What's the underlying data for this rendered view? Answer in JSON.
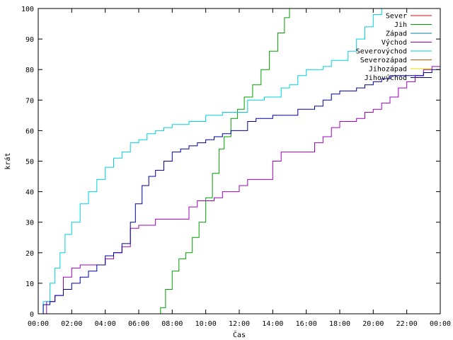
{
  "chart_data": {
    "type": "line",
    "xlabel": "Čas",
    "ylabel": "krát",
    "x_ticks": [
      "00:00",
      "02:00",
      "04:00",
      "06:00",
      "08:00",
      "10:00",
      "12:00",
      "14:00",
      "16:00",
      "18:00",
      "20:00",
      "22:00",
      "00:00"
    ],
    "x_range_hours": [
      0,
      24
    ],
    "ylim": [
      0,
      100
    ],
    "y_ticks": [
      0,
      10,
      20,
      30,
      40,
      50,
      60,
      70,
      80,
      90,
      100
    ],
    "grid": false,
    "legend_position": "top-right",
    "series": [
      {
        "name": "Sever",
        "color": "#ff0000",
        "points": []
      },
      {
        "name": "Jih",
        "color": "#00a000",
        "points": [
          [
            7.0,
            0
          ],
          [
            7.3,
            2
          ],
          [
            7.6,
            8
          ],
          [
            8.0,
            14
          ],
          [
            8.4,
            18
          ],
          [
            8.8,
            20
          ],
          [
            9.2,
            25
          ],
          [
            9.6,
            30
          ],
          [
            10.0,
            38
          ],
          [
            10.4,
            46
          ],
          [
            10.8,
            54
          ],
          [
            11.1,
            58
          ],
          [
            11.5,
            64
          ],
          [
            11.9,
            67
          ],
          [
            12.3,
            71
          ],
          [
            12.8,
            75
          ],
          [
            13.3,
            80
          ],
          [
            13.8,
            86
          ],
          [
            14.3,
            92
          ],
          [
            14.7,
            97
          ],
          [
            15.0,
            100
          ]
        ]
      },
      {
        "name": "Západ",
        "color": "#0080a0",
        "points": []
      },
      {
        "name": "Východ",
        "color": "#a000c0",
        "points": [
          [
            0,
            0
          ],
          [
            0.5,
            4
          ],
          [
            1.0,
            6
          ],
          [
            1.5,
            12
          ],
          [
            2.0,
            15
          ],
          [
            2.5,
            16
          ],
          [
            3.5,
            16
          ],
          [
            4.0,
            18
          ],
          [
            4.5,
            20
          ],
          [
            5.0,
            22
          ],
          [
            5.5,
            28
          ],
          [
            6.0,
            29
          ],
          [
            6.5,
            29
          ],
          [
            7.0,
            31
          ],
          [
            8.5,
            31
          ],
          [
            9.0,
            35
          ],
          [
            9.5,
            37
          ],
          [
            10.5,
            38
          ],
          [
            11.0,
            40
          ],
          [
            12.0,
            42
          ],
          [
            12.5,
            44
          ],
          [
            13.5,
            44
          ],
          [
            14.0,
            50
          ],
          [
            14.5,
            53
          ],
          [
            16.0,
            53
          ],
          [
            16.5,
            56
          ],
          [
            17.0,
            58
          ],
          [
            17.5,
            61
          ],
          [
            18.0,
            63
          ],
          [
            19.0,
            64
          ],
          [
            19.5,
            66
          ],
          [
            20.0,
            67
          ],
          [
            20.5,
            69
          ],
          [
            21.0,
            71
          ],
          [
            21.5,
            74
          ],
          [
            22.0,
            76
          ],
          [
            22.5,
            78
          ],
          [
            23.0,
            80
          ],
          [
            23.5,
            81
          ],
          [
            24.0,
            82
          ]
        ]
      },
      {
        "name": "Severovýchod",
        "color": "#00d0e0",
        "points": [
          [
            0,
            0
          ],
          [
            0.3,
            4
          ],
          [
            0.7,
            10
          ],
          [
            1.0,
            15
          ],
          [
            1.3,
            20
          ],
          [
            1.6,
            26
          ],
          [
            2.0,
            30
          ],
          [
            2.5,
            36
          ],
          [
            3.0,
            40
          ],
          [
            3.5,
            44
          ],
          [
            4.0,
            48
          ],
          [
            4.5,
            51
          ],
          [
            5.0,
            53
          ],
          [
            5.5,
            56
          ],
          [
            6.0,
            57
          ],
          [
            6.5,
            59
          ],
          [
            7.0,
            60
          ],
          [
            7.5,
            61
          ],
          [
            8.0,
            62
          ],
          [
            9.0,
            63
          ],
          [
            10.0,
            65
          ],
          [
            11.0,
            66
          ],
          [
            12.0,
            66
          ],
          [
            12.5,
            70
          ],
          [
            13.5,
            71
          ],
          [
            14.5,
            74
          ],
          [
            15.0,
            75
          ],
          [
            15.5,
            78
          ],
          [
            16.0,
            80
          ],
          [
            17.0,
            81
          ],
          [
            17.5,
            83
          ],
          [
            18.5,
            86
          ],
          [
            19.0,
            90
          ],
          [
            19.5,
            94
          ],
          [
            20.0,
            98
          ],
          [
            20.5,
            100
          ]
        ]
      },
      {
        "name": "Severozápad",
        "color": "#c06000",
        "points": []
      },
      {
        "name": "Jihozápad",
        "color": "#e0e000",
        "points": []
      },
      {
        "name": "Jihovýchod",
        "color": "#0000a0",
        "points": [
          [
            0,
            0
          ],
          [
            0.3,
            3
          ],
          [
            0.7,
            4
          ],
          [
            1.0,
            6
          ],
          [
            1.5,
            8
          ],
          [
            2.0,
            10
          ],
          [
            2.5,
            12
          ],
          [
            3.0,
            14
          ],
          [
            3.5,
            16
          ],
          [
            4.0,
            19
          ],
          [
            4.5,
            20
          ],
          [
            5.0,
            23
          ],
          [
            5.5,
            30
          ],
          [
            5.8,
            36
          ],
          [
            6.2,
            42
          ],
          [
            6.6,
            45
          ],
          [
            7.0,
            47
          ],
          [
            7.5,
            50
          ],
          [
            8.0,
            53
          ],
          [
            8.5,
            54
          ],
          [
            9.0,
            55
          ],
          [
            9.5,
            56
          ],
          [
            10.0,
            57
          ],
          [
            10.5,
            58
          ],
          [
            11.0,
            59
          ],
          [
            11.5,
            60
          ],
          [
            12.0,
            60
          ],
          [
            12.5,
            63
          ],
          [
            13.0,
            64
          ],
          [
            14.0,
            65
          ],
          [
            15.0,
            65
          ],
          [
            15.5,
            67
          ],
          [
            16.5,
            68
          ],
          [
            17.0,
            70
          ],
          [
            17.5,
            72
          ],
          [
            18.0,
            73
          ],
          [
            19.0,
            74
          ],
          [
            19.5,
            75
          ],
          [
            20.0,
            76
          ],
          [
            20.5,
            77
          ],
          [
            21.0,
            78
          ],
          [
            22.0,
            78
          ],
          [
            23.0,
            79
          ],
          [
            23.5,
            80
          ],
          [
            24.0,
            84
          ]
        ]
      }
    ]
  }
}
